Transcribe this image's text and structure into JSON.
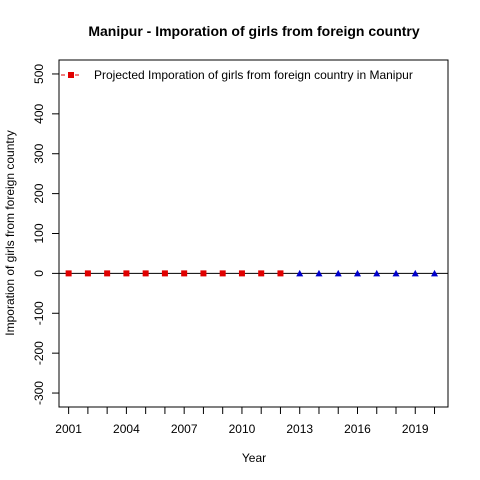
{
  "chart_data": {
    "type": "scatter",
    "title": "Manipur  -  Imporation of girls from foreign country",
    "xlabel": "Year",
    "ylabel": "Imporation of girls from foreign country",
    "xlim": [
      2000.5,
      2020.7
    ],
    "ylim": [
      -335,
      535
    ],
    "x_ticks": [
      2001,
      2004,
      2007,
      2010,
      2013,
      2016,
      2019
    ],
    "x_minor_ticks": [
      2001,
      2002,
      2003,
      2004,
      2005,
      2006,
      2007,
      2008,
      2009,
      2010,
      2011,
      2012,
      2013,
      2014,
      2015,
      2016,
      2017,
      2018,
      2019,
      2020
    ],
    "y_ticks": [
      -300,
      -200,
      -100,
      0,
      100,
      200,
      300,
      400,
      500
    ],
    "zero_line": 0,
    "grid": false,
    "legend": {
      "position": "top-left",
      "entry": "Projected  Imporation of girls from foreign country  in  Manipur"
    },
    "series": [
      {
        "marker": "square",
        "color": "#e00000",
        "x": [
          2001,
          2002,
          2003,
          2004,
          2005,
          2006,
          2007,
          2008,
          2009,
          2010,
          2011,
          2012
        ],
        "y": [
          0,
          0,
          0,
          0,
          0,
          0,
          0,
          0,
          0,
          0,
          0,
          0
        ]
      },
      {
        "marker": "triangle",
        "color": "#0000cc",
        "x": [
          2013,
          2014,
          2015,
          2016,
          2017,
          2018,
          2019,
          2020
        ],
        "y": [
          0,
          0,
          0,
          0,
          0,
          0,
          0,
          0
        ]
      }
    ]
  }
}
